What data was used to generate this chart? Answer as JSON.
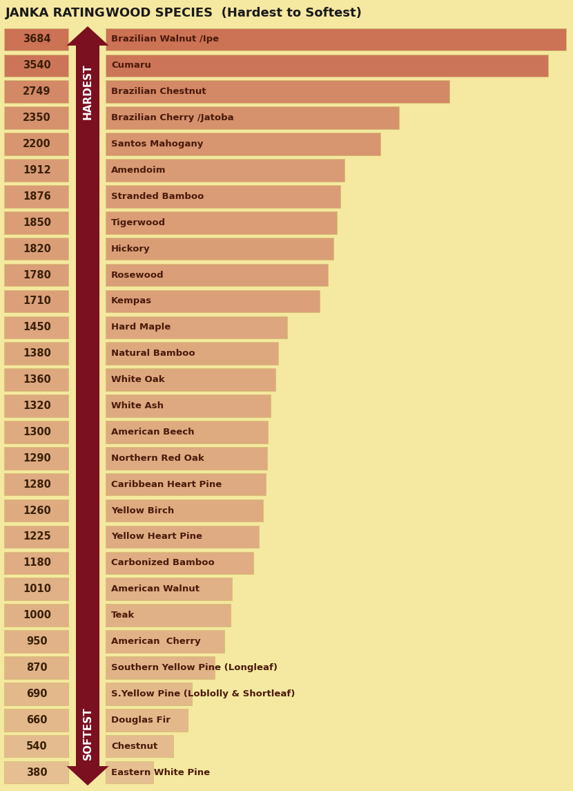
{
  "title_left": "JANKA RATING",
  "title_right": "WOOD SPECIES  (Hardest to Softest)",
  "background_color": "#f5e8a0",
  "species": [
    {
      "name": "Brazilian Walnut /Ipe",
      "rating": 3684
    },
    {
      "name": "Cumaru",
      "rating": 3540
    },
    {
      "name": "Brazilian Chestnut",
      "rating": 2749
    },
    {
      "name": "Brazilian Cherry /Jatoba",
      "rating": 2350
    },
    {
      "name": "Santos Mahogany",
      "rating": 2200
    },
    {
      "name": "Amendoim",
      "rating": 1912
    },
    {
      "name": "Stranded Bamboo",
      "rating": 1876
    },
    {
      "name": "Tigerwood",
      "rating": 1850
    },
    {
      "name": "Hickory",
      "rating": 1820
    },
    {
      "name": "Rosewood",
      "rating": 1780
    },
    {
      "name": "Kempas",
      "rating": 1710
    },
    {
      "name": "Hard Maple",
      "rating": 1450
    },
    {
      "name": "Natural Bamboo",
      "rating": 1380
    },
    {
      "name": "White Oak",
      "rating": 1360
    },
    {
      "name": "White Ash",
      "rating": 1320
    },
    {
      "name": "American Beech",
      "rating": 1300
    },
    {
      "name": "Northern Red Oak",
      "rating": 1290
    },
    {
      "name": "Caribbean Heart Pine",
      "rating": 1280
    },
    {
      "name": "Yellow Birch",
      "rating": 1260
    },
    {
      "name": "Yellow Heart Pine",
      "rating": 1225
    },
    {
      "name": "Carbonized Bamboo",
      "rating": 1180
    },
    {
      "name": "American Walnut",
      "rating": 1010
    },
    {
      "name": "Teak",
      "rating": 1000
    },
    {
      "name": "American  Cherry",
      "rating": 950
    },
    {
      "name": "Southern Yellow Pine (Longleaf)",
      "rating": 870
    },
    {
      "name": "S.Yellow Pine (Loblolly & Shortleaf)",
      "rating": 690
    },
    {
      "name": "Douglas Fir",
      "rating": 660
    },
    {
      "name": "Chestnut",
      "rating": 540
    },
    {
      "name": "Eastern White Pine",
      "rating": 380
    }
  ],
  "arrow_color": "#7a1020",
  "bar_text_color": "#4a1a0a",
  "rating_text_color": "#3a2008",
  "max_rating": 3684,
  "hardest_label": "HARDEST",
  "softest_label": "SOFTEST",
  "hardest_rows": [
    0,
    1,
    2,
    3,
    4
  ],
  "softest_rows": [
    25,
    26,
    27,
    28
  ]
}
